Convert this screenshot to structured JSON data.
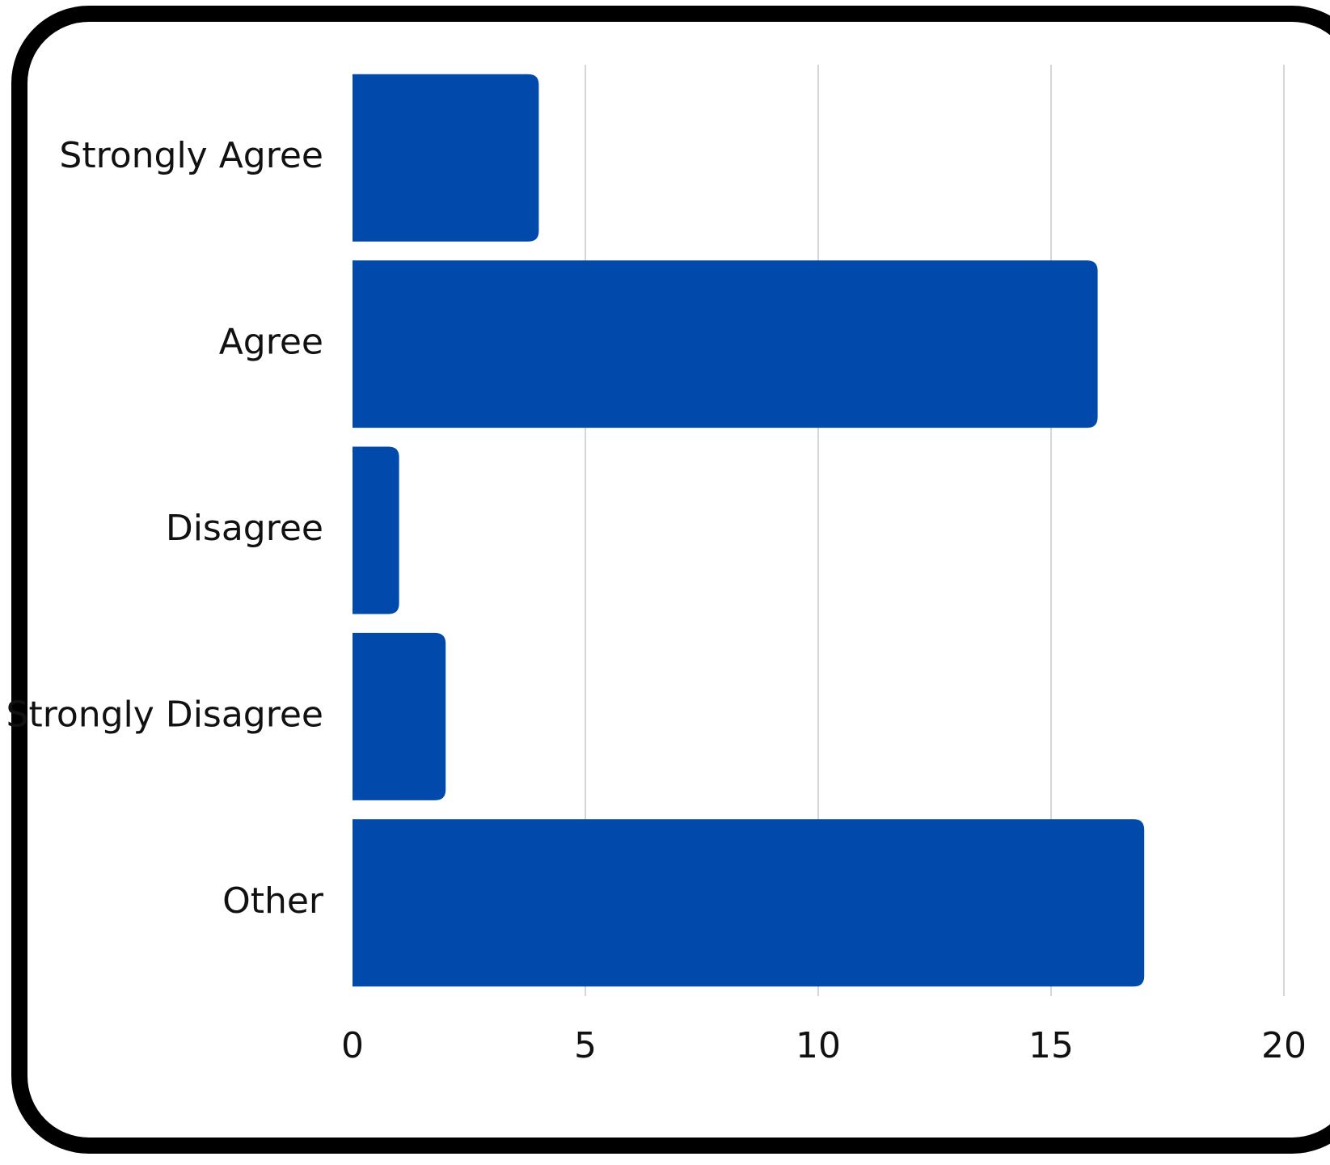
{
  "chart_data": {
    "type": "bar",
    "orientation": "horizontal",
    "categories": [
      "Strongly Agree",
      "Agree",
      "Disagree",
      "Strongly Disagree",
      "Other"
    ],
    "values": [
      4,
      16,
      1,
      2,
      17
    ],
    "xlim": [
      0,
      20
    ],
    "xticks": [
      "0",
      "5",
      "10",
      "15",
      "20"
    ],
    "grid": true,
    "bar_color": "#014AAB"
  }
}
